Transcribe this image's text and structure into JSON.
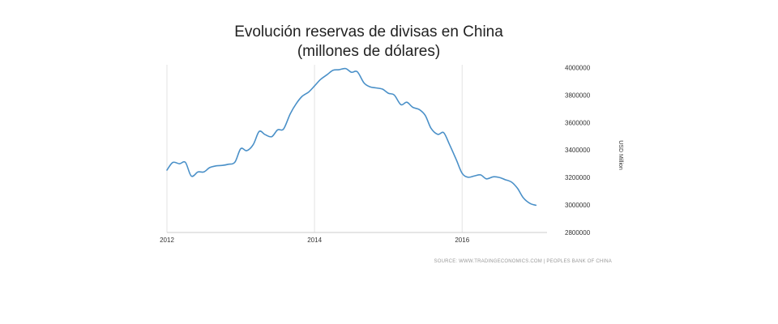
{
  "chart_data": {
    "type": "line",
    "title": "Evolución reservas de divisas en China",
    "subtitle": "(millones de dólares)",
    "ylabel": "USD Million",
    "source": "SOURCE: WWW.TRADINGECONOMICS.COM | PEOPLES BANK OF CHINA",
    "x_ticks": [
      2012,
      2014,
      2016
    ],
    "y_ticks": [
      2800000,
      3000000,
      3200000,
      3400000,
      3600000,
      3800000,
      4000000
    ],
    "y_tick_labels": [
      "2800000",
      "3000000",
      "3200000",
      "3400000",
      "3600000",
      "3800000",
      "4000000"
    ],
    "x_tick_labels": [
      "2012",
      "2014",
      "2016"
    ],
    "xlim": [
      2012,
      2017.15
    ],
    "ylim": [
      2800000,
      4020000
    ],
    "grid": "vertical",
    "y_axis_position": "right",
    "line_color": "#4a90c8",
    "series": [
      {
        "name": "",
        "x": [
          2012.0,
          2012.08,
          2012.17,
          2012.25,
          2012.33,
          2012.42,
          2012.5,
          2012.58,
          2012.67,
          2012.75,
          2012.83,
          2012.92,
          2013.0,
          2013.08,
          2013.17,
          2013.25,
          2013.33,
          2013.42,
          2013.5,
          2013.58,
          2013.67,
          2013.75,
          2013.83,
          2013.92,
          2014.0,
          2014.08,
          2014.17,
          2014.25,
          2014.33,
          2014.42,
          2014.5,
          2014.58,
          2014.67,
          2014.75,
          2014.83,
          2014.92,
          2015.0,
          2015.08,
          2015.17,
          2015.25,
          2015.33,
          2015.42,
          2015.5,
          2015.58,
          2015.67,
          2015.75,
          2015.83,
          2015.92,
          2016.0,
          2016.08,
          2016.17,
          2016.25,
          2016.33,
          2016.42,
          2016.5,
          2016.58,
          2016.67,
          2016.75,
          2016.83,
          2016.92,
          2017.0
        ],
        "y": [
          3254000,
          3310000,
          3300000,
          3310000,
          3210000,
          3240000,
          3240000,
          3272000,
          3285000,
          3288000,
          3296000,
          3311000,
          3410000,
          3395000,
          3440000,
          3535000,
          3512000,
          3497000,
          3547000,
          3553000,
          3663000,
          3736000,
          3790000,
          3822000,
          3866000,
          3913000,
          3948000,
          3980000,
          3984000,
          3993000,
          3966000,
          3969000,
          3888000,
          3860000,
          3852000,
          3843000,
          3813000,
          3800000,
          3730000,
          3748000,
          3711000,
          3694000,
          3652000,
          3557000,
          3514000,
          3526000,
          3438000,
          3330000,
          3230000,
          3202000,
          3212000,
          3219000,
          3190000,
          3205000,
          3201000,
          3185000,
          3166000,
          3121000,
          3051000,
          3011000,
          2998000
        ]
      }
    ]
  }
}
